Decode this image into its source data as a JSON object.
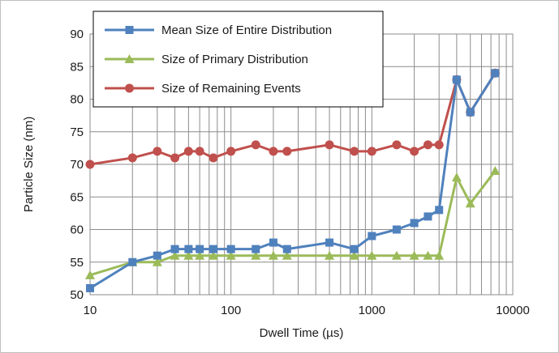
{
  "chart_data": {
    "type": "line",
    "title": "",
    "xlabel": "Dwell Time (µs)",
    "ylabel": "Particle Size (nm)",
    "xscale": "log",
    "xlim": [
      10,
      10000
    ],
    "ylim": [
      50,
      90
    ],
    "xticks": [
      10,
      100,
      1000,
      10000
    ],
    "xtick_labels": [
      "10",
      "100",
      "1000",
      "10000"
    ],
    "yticks": [
      50,
      55,
      60,
      65,
      70,
      75,
      80,
      85,
      90
    ],
    "grid": true,
    "legend_position": "top-left",
    "series": [
      {
        "name": "Mean Size of Entire Distribution",
        "color": "#4f81bd",
        "marker": "square",
        "x": [
          10,
          20,
          30,
          40,
          50,
          60,
          75,
          100,
          150,
          200,
          250,
          500,
          750,
          1000,
          1500,
          2000,
          2500,
          3000,
          4000,
          5000,
          7500
        ],
        "y": [
          51,
          55,
          56,
          57,
          57,
          57,
          57,
          57,
          57,
          58,
          57,
          58,
          57,
          59,
          60,
          61,
          62,
          63,
          83,
          78,
          84
        ]
      },
      {
        "name": "Size of Primary Distribution",
        "color": "#9bbb59",
        "marker": "triangle",
        "x": [
          10,
          20,
          30,
          40,
          50,
          60,
          75,
          100,
          150,
          200,
          250,
          500,
          750,
          1000,
          1500,
          2000,
          2500,
          3000,
          4000,
          5000,
          7500
        ],
        "y": [
          53,
          55,
          55,
          56,
          56,
          56,
          56,
          56,
          56,
          56,
          56,
          56,
          56,
          56,
          56,
          56,
          56,
          56,
          68,
          64,
          69
        ]
      },
      {
        "name": "Size of Remaining Events",
        "color": "#c0504d",
        "marker": "circle",
        "x": [
          10,
          20,
          30,
          40,
          50,
          60,
          75,
          100,
          150,
          200,
          250,
          500,
          750,
          1000,
          1500,
          2000,
          2500,
          3000,
          4000,
          5000,
          7500
        ],
        "y": [
          70,
          71,
          72,
          71,
          72,
          72,
          71,
          72,
          73,
          72,
          72,
          73,
          72,
          72,
          73,
          72,
          73,
          73,
          83,
          78,
          84
        ]
      }
    ]
  }
}
